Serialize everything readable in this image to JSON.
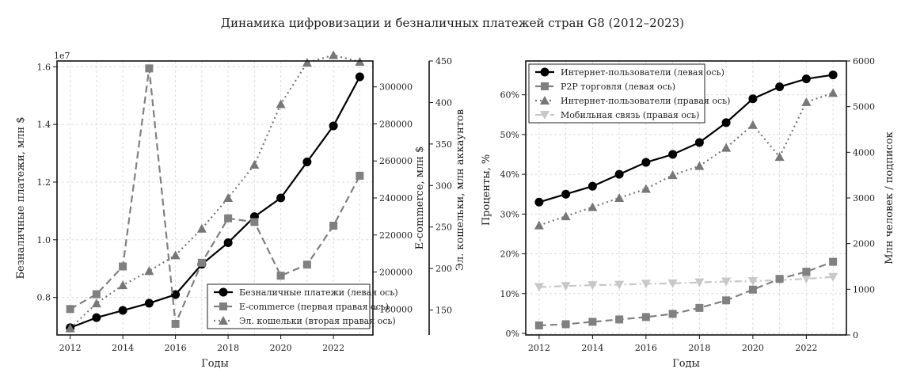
{
  "suptitle": "Динамика цифровизации и безналичных платежей стран G8 (2012–2023)",
  "colors": {
    "black": "#000000",
    "dark_gray": "#808080",
    "mid_gray": "#777777",
    "light_gray": "#c8c8c8",
    "grid": "#dddddd"
  },
  "chart_data": [
    {
      "type": "line",
      "xlabel": "Годы",
      "x": [
        2012,
        2013,
        2014,
        2015,
        2016,
        2017,
        2018,
        2019,
        2020,
        2021,
        2022,
        2023
      ],
      "xticks": [
        2012,
        2014,
        2016,
        2018,
        2020,
        2022
      ],
      "xlim": [
        2011.5,
        2023.5
      ],
      "grid": true,
      "legend_position": "lower-right",
      "axes": {
        "left": {
          "label": "Безналичные платежи, млн $",
          "ylim": [
            0.67,
            1.62
          ],
          "ticks": [
            0.8,
            1.0,
            1.2,
            1.4,
            1.6
          ],
          "tick_labels": [
            "0.8",
            "1.0",
            "1.2",
            "1.4",
            "1.6"
          ],
          "offset_text": "1e7"
        },
        "right1": {
          "label": "E-commerce, млн $",
          "ylim": [
            166000,
            314000
          ],
          "ticks": [
            180000,
            200000,
            220000,
            240000,
            260000,
            280000,
            300000
          ],
          "tick_labels": [
            "180000",
            "200000",
            "220000",
            "240000",
            "260000",
            "280000",
            "300000"
          ]
        },
        "right2": {
          "label": "Эл. кошельки, млн аккаунтов",
          "ylim": [
            120,
            450
          ],
          "ticks": [
            150,
            200,
            250,
            300,
            350,
            400,
            450
          ],
          "tick_labels": [
            "150",
            "200",
            "250",
            "300",
            "350",
            "400",
            "450"
          ]
        }
      },
      "series": [
        {
          "name": "Безналичные платежи (левая ось)",
          "axis": "left",
          "style": "solid",
          "marker": "circle",
          "color": "#000000",
          "values": [
            6950000,
            7300000,
            7550000,
            7800000,
            8100000,
            9150000,
            9900000,
            10800000,
            11450000,
            12700000,
            13950000,
            15650000
          ]
        },
        {
          "name": "E-commerce (первая правая ось)",
          "axis": "right1",
          "style": "dashed",
          "marker": "square",
          "color": "#808080",
          "values": [
            180000,
            188000,
            203000,
            310000,
            172000,
            205000,
            229000,
            227000,
            198000,
            204000,
            225000,
            252000
          ]
        },
        {
          "name": "Эл. кошельки (вторая правая ось)",
          "axis": "right2",
          "style": "dotted",
          "marker": "triangle-up",
          "color": "#777777",
          "values": [
            128,
            158,
            180,
            197,
            216,
            248,
            285,
            325,
            398,
            448,
            457,
            449
          ]
        }
      ]
    },
    {
      "type": "line",
      "xlabel": "Годы",
      "x": [
        2012,
        2013,
        2014,
        2015,
        2016,
        2017,
        2018,
        2019,
        2020,
        2021,
        2022,
        2023
      ],
      "xticks": [
        2012,
        2014,
        2016,
        2018,
        2020,
        2022
      ],
      "xlim": [
        2011.5,
        2023.5
      ],
      "grid": true,
      "legend_position": "upper-left",
      "axes": {
        "left": {
          "label": "Проценты, %",
          "ylim": [
            -0.4,
            68.5
          ],
          "ticks": [
            0,
            10,
            20,
            30,
            40,
            50,
            60
          ],
          "tick_labels": [
            "0%",
            "10%",
            "20%",
            "30%",
            "40%",
            "50%",
            "60%"
          ]
        },
        "right": {
          "label": "Млн человек / подписок",
          "ylim": [
            0,
            6000
          ],
          "ticks": [
            0,
            1000,
            2000,
            3000,
            4000,
            5000,
            6000
          ],
          "tick_labels": [
            "0",
            "1000",
            "2000",
            "3000",
            "4000",
            "5000",
            "6000"
          ]
        }
      },
      "series": [
        {
          "name": "Интернет-пользователи (левая ось)",
          "axis": "left",
          "style": "solid",
          "marker": "circle",
          "color": "#000000",
          "values": [
            33,
            35,
            37,
            40,
            43,
            45,
            48,
            53,
            59,
            62,
            64,
            65
          ]
        },
        {
          "name": "P2P торговля (левая ось)",
          "axis": "left",
          "style": "dashed",
          "marker": "square",
          "color": "#808080",
          "values": [
            2,
            2.3,
            2.9,
            3.5,
            4.1,
            4.9,
            6.4,
            8.3,
            11,
            13.7,
            15.5,
            18
          ]
        },
        {
          "name": "Интернет-пользователи (правая ось)",
          "axis": "right",
          "style": "dotted",
          "marker": "triangle-up",
          "color": "#777777",
          "values": [
            2400,
            2600,
            2800,
            3000,
            3200,
            3500,
            3700,
            4100,
            4600,
            3900,
            5100,
            5300
          ]
        },
        {
          "name": "Мобильная связь (правая ось)",
          "axis": "right",
          "style": "dashdot",
          "marker": "triangle-down",
          "color": "#c8c8c8",
          "values": [
            1050,
            1070,
            1090,
            1100,
            1120,
            1130,
            1150,
            1170,
            1180,
            1200,
            1230,
            1270
          ]
        }
      ]
    }
  ]
}
